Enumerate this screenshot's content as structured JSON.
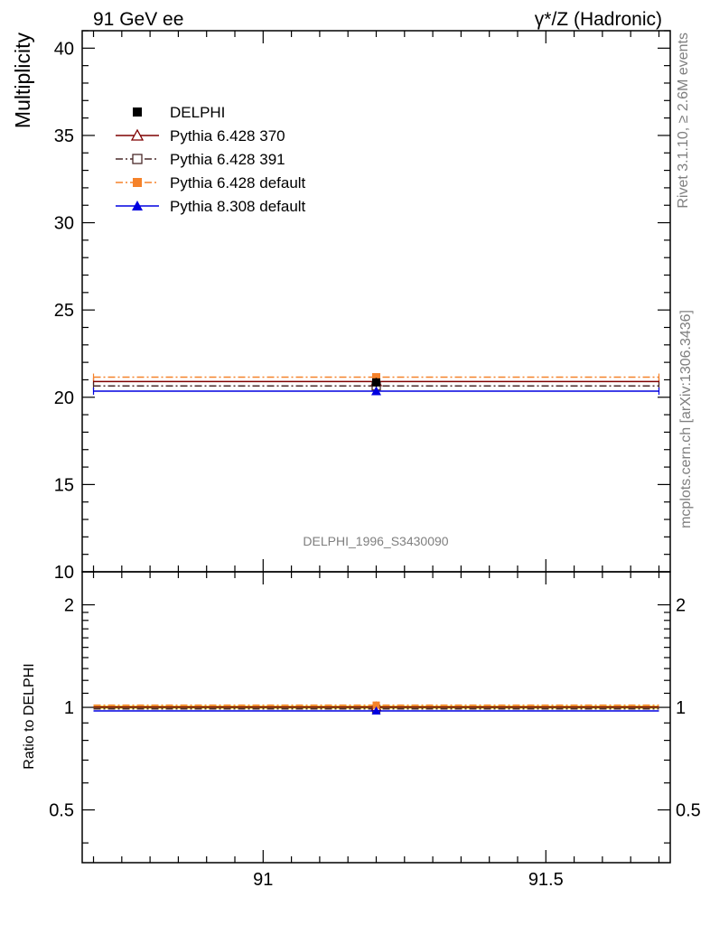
{
  "header": {
    "left": "91 GeV ee",
    "right_prefix": "γ*/Z",
    "right_suffix": " (Hadronic)"
  },
  "side_text": {
    "rivet": "Rivet 3.1.10, ≥ 2.6M events",
    "mcplots": "mcplots.cern.ch [arXiv:1306.3436]"
  },
  "watermark": "DELPHI_1996_S3430090",
  "colors": {
    "data": "#000000",
    "py6_370": "#7f0000",
    "py6_391": "#4a2a2a",
    "py6_default": "#f5822a",
    "py8_default": "#0000e0",
    "ratio_band": "#f5e342"
  },
  "chart_data": [
    {
      "type": "line",
      "ylabel": "Multiplicity",
      "ylim": [
        10,
        41
      ],
      "xlim": [
        90.68,
        91.72
      ],
      "yticks": [
        {
          "v": 10,
          "t": "10"
        },
        {
          "v": 15,
          "t": "15"
        },
        {
          "v": 20,
          "t": "20"
        },
        {
          "v": 25,
          "t": "25"
        },
        {
          "v": 30,
          "t": "30"
        },
        {
          "v": 35,
          "t": "35"
        },
        {
          "v": 40,
          "t": "40"
        }
      ],
      "legend_position": "top-left",
      "bin": [
        90.7,
        91.7
      ],
      "x_center": 91.2,
      "series": [
        {
          "key": "data",
          "name": "DELPHI",
          "value": 20.85,
          "marker": "square",
          "dash": "none"
        },
        {
          "key": "py6_370",
          "name": "Pythia 6.428 370",
          "value": 20.9,
          "marker": "triangle-open",
          "dash": "solid"
        },
        {
          "key": "py6_391",
          "name": "Pythia 6.428 391",
          "value": 20.65,
          "marker": "square-open",
          "dash": "dashdot"
        },
        {
          "key": "py6_default",
          "name": "Pythia 6.428 default",
          "value": 21.15,
          "marker": "square-filled",
          "dash": "dashdot"
        },
        {
          "key": "py8_default",
          "name": "Pythia 8.308 default",
          "value": 20.35,
          "marker": "triangle-filled",
          "dash": "solid"
        }
      ]
    },
    {
      "type": "line",
      "ylabel": "Ratio to DELPHI",
      "ylim": [
        0.35,
        2.5
      ],
      "log_y": true,
      "xlim": [
        90.68,
        91.72
      ],
      "yticks_left": [
        {
          "v": 0.5,
          "t": "0.5"
        },
        {
          "v": 1,
          "t": "1"
        },
        {
          "v": 2,
          "t": "2"
        }
      ],
      "yticks_right": [
        {
          "v": 0.5,
          "t": "0.5"
        },
        {
          "v": 1,
          "t": "1"
        },
        {
          "v": 2,
          "t": "2"
        }
      ],
      "xticks": [
        {
          "v": 91,
          "t": "91"
        },
        {
          "v": 91.5,
          "t": "91.5"
        }
      ],
      "band": [
        0.99,
        1.012
      ],
      "series": [
        {
          "key": "data",
          "value": 1.0
        },
        {
          "key": "py6_370",
          "value": 1.003
        },
        {
          "key": "py6_391",
          "value": 0.99
        },
        {
          "key": "py6_default",
          "value": 1.015
        },
        {
          "key": "py8_default",
          "value": 0.976
        }
      ]
    }
  ]
}
